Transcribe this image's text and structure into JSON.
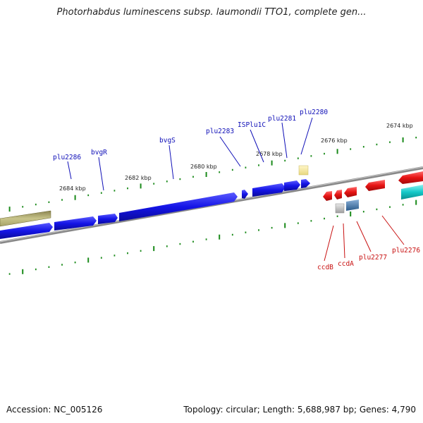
{
  "title": "Photorhabdus luminescens subsp. laumondii TTO1, complete gen...",
  "footer": {
    "accession": "Accession: NC_005126",
    "summary": "Topology: circular; Length: 5,688,987 bp; Genes: 4,790"
  },
  "colors": {
    "forward_cds": "#1414e6",
    "reverse_cds": "#e61414",
    "forward_other": "#b8b46a",
    "reverse_other": "#14c8c8",
    "backbone": "#888888",
    "tick": "#1a8a1a",
    "label_forward": "#1010b8",
    "label_reverse": "#c81010"
  },
  "axis_labels": {
    "upper": [
      "2674 kbp",
      "2676 kbp",
      "2678 kbp",
      "2680 kbp",
      "2682 kbp",
      "2684 kbp"
    ]
  },
  "gene_labels": {
    "forward": [
      "plu2286",
      "bvgR",
      "bvgS",
      "plu2283",
      "ISPlu1C",
      "plu2281",
      "plu2280"
    ],
    "reverse": [
      "ccdB",
      "ccdA",
      "plu2277",
      "plu2276"
    ]
  }
}
